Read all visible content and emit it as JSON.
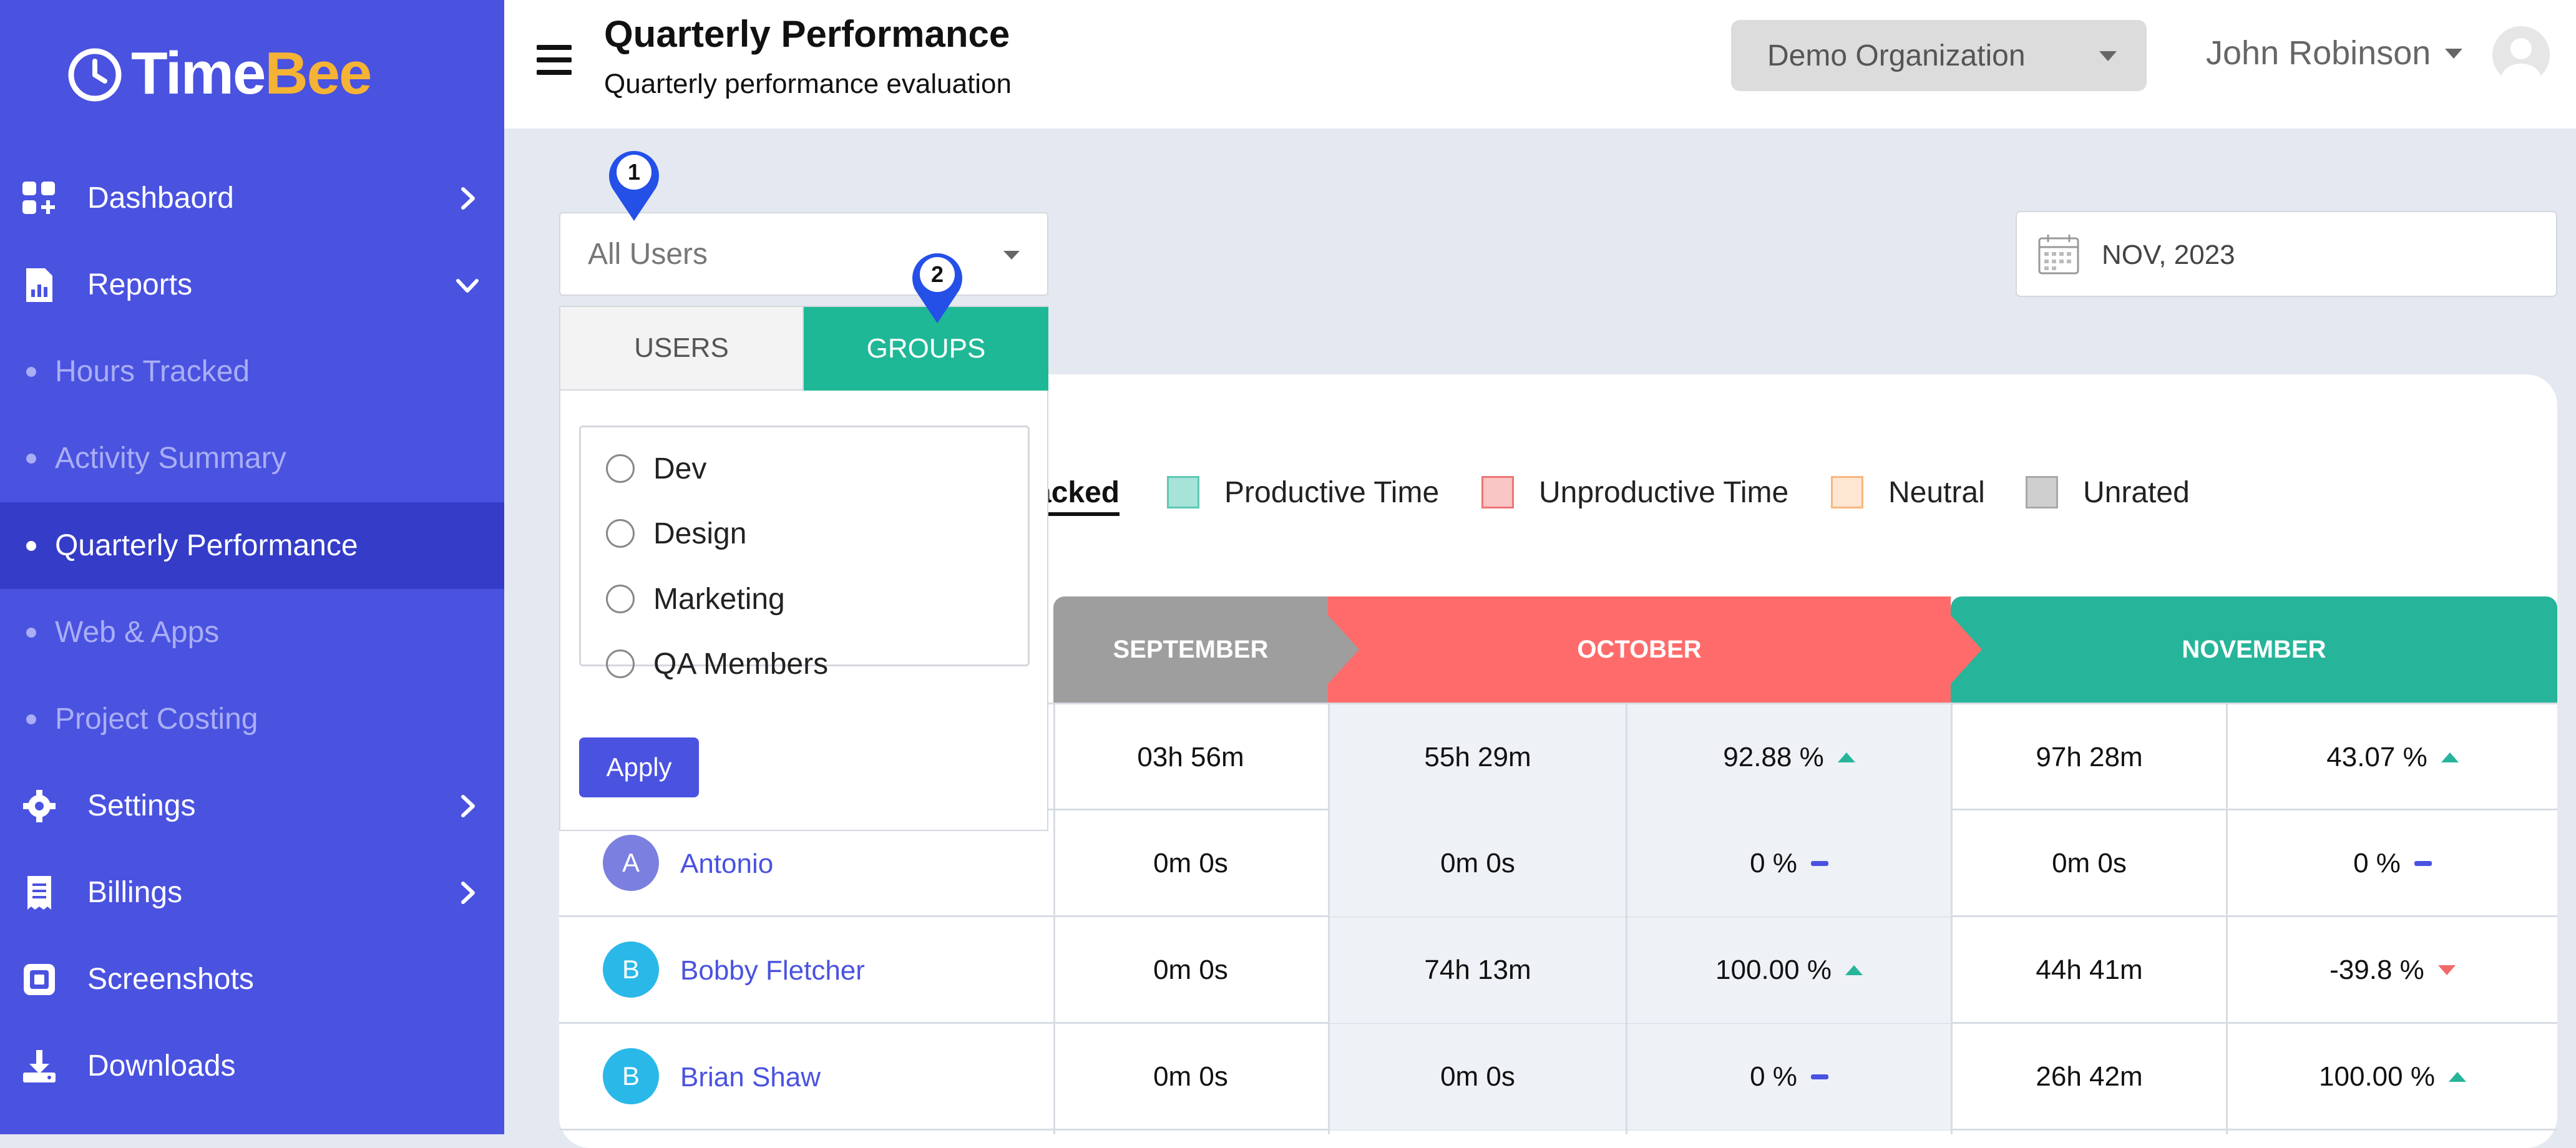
{
  "brand": {
    "name_part1": "Time",
    "name_part2": "Bee",
    "accent": "#4a52e0",
    "sidebar_active": "#343cc8"
  },
  "sidebar": {
    "items": [
      {
        "label": "Dashbaord",
        "icon": "dashboard-icon"
      },
      {
        "label": "Reports",
        "icon": "reports-icon"
      },
      {
        "label": "Hours Tracked"
      },
      {
        "label": "Activity Summary"
      },
      {
        "label": "Quarterly Performance"
      },
      {
        "label": "Web & Apps"
      },
      {
        "label": "Project Costing"
      },
      {
        "label": "Settings",
        "icon": "gear-icon"
      },
      {
        "label": "Billings",
        "icon": "receipt-icon"
      },
      {
        "label": "Screenshots",
        "icon": "screenshot-icon"
      },
      {
        "label": "Downloads",
        "icon": "download-icon"
      }
    ]
  },
  "header": {
    "title": "Quarterly Performance",
    "subtitle": "Quarterly performance evaluation",
    "organization": "Demo Organization",
    "user_name": "John Robinson"
  },
  "filters": {
    "user_select": "All Users",
    "date": "NOV, 2023"
  },
  "dropdown": {
    "tabs": [
      "USERS",
      "GROUPS"
    ],
    "active_tab": "GROUPS",
    "groups": [
      "Dev",
      "Design",
      "Marketing",
      "QA Members"
    ],
    "apply_label": "Apply"
  },
  "markers": [
    "1",
    "2"
  ],
  "legend": {
    "tab_label": "acked",
    "items": [
      {
        "label": "Productive Time",
        "color": "#a8e3d8",
        "border": "#5cc9b4"
      },
      {
        "label": "Unproductive Time",
        "color": "#f9c5c5",
        "border": "#ef7575"
      },
      {
        "label": "Neutral",
        "color": "#fde6d2",
        "border": "#f7b77c"
      },
      {
        "label": "Unrated",
        "color": "#cfcfcf",
        "border": "#a8a8a8"
      }
    ]
  },
  "months": [
    {
      "label": "SEPTEMBER",
      "color": "#9e9e9e"
    },
    {
      "label": "OCTOBER",
      "color": "#ff6b6b"
    },
    {
      "label": "NOVEMBER",
      "color": "#26b59a"
    }
  ],
  "table": {
    "rows": [
      {
        "name": "",
        "initial": "",
        "sep": "03h 56m",
        "oct": "55h 29m",
        "oct_pct": "92.88 %",
        "oct_trend": "up",
        "nov": "97h 28m",
        "nov_pct": "43.07 %",
        "nov_trend": "up"
      },
      {
        "name": "Antonio",
        "initial": "A",
        "avatar_color": "#7b7fe0",
        "sep": "0m 0s",
        "oct": "0m 0s",
        "oct_pct": "0 %",
        "oct_trend": "flat",
        "nov": "0m 0s",
        "nov_pct": "0 %",
        "nov_trend": "flat"
      },
      {
        "name": "Bobby Fletcher",
        "initial": "B",
        "avatar_color": "#2ab8e8",
        "sep": "0m 0s",
        "oct": "74h 13m",
        "oct_pct": "100.00 %",
        "oct_trend": "up",
        "nov": "44h 41m",
        "nov_pct": "-39.8 %",
        "nov_trend": "down"
      },
      {
        "name": "Brian Shaw",
        "initial": "B",
        "avatar_color": "#2ab8e8",
        "sep": "0m 0s",
        "oct": "0m 0s",
        "oct_pct": "0 %",
        "oct_trend": "flat",
        "nov": "26h 42m",
        "nov_pct": "100.00 %",
        "nov_trend": "up"
      }
    ]
  }
}
